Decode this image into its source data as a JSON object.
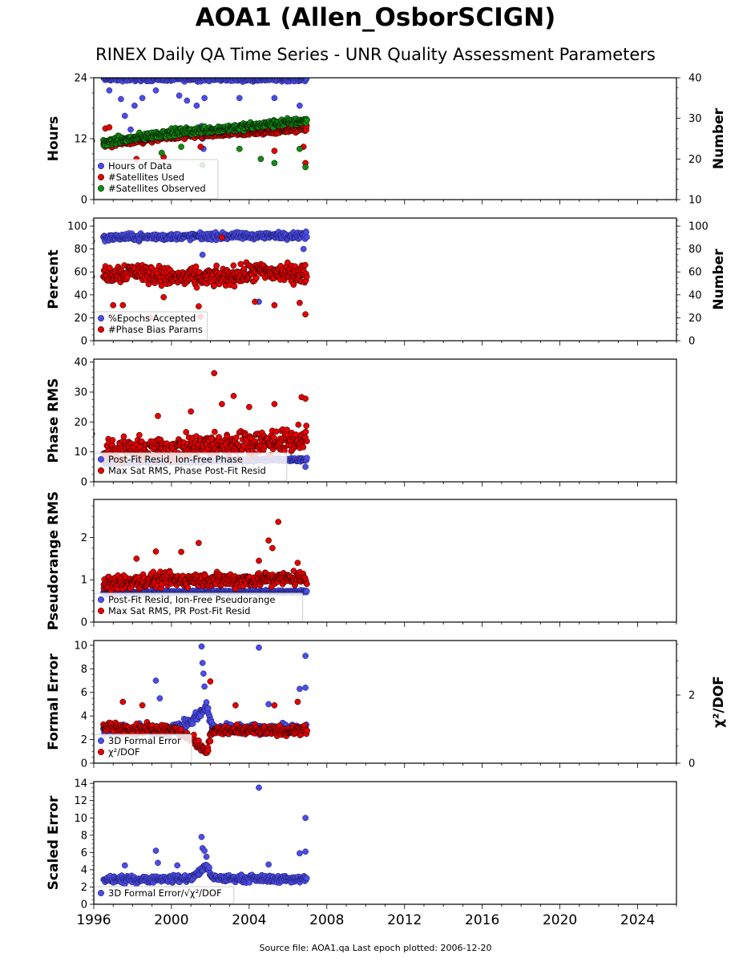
{
  "title": "AOA1 (Allen_OsborSCIGN)",
  "subtitle": "RINEX Daily QA Time Series - UNR Quality Assessment Parameters",
  "footer": "Source file: AOA1.qa Last epoch plotted: 2006-12-20",
  "x_axis": {
    "range": [
      1996,
      2026
    ],
    "ticks": [
      1996,
      2000,
      2004,
      2008,
      2012,
      2016,
      2020,
      2024
    ],
    "data_range": [
      1995.9,
      2006.97
    ]
  },
  "colors": {
    "blue": "#4c4ce6",
    "red": "#e60000",
    "green": "#118c11",
    "dark_blue": "#1a1a66",
    "dark_red": "#660000"
  },
  "chart_data": [
    {
      "type": "scatter",
      "ylabel": "Hours",
      "ylim": [
        0,
        24
      ],
      "yticks": [
        0,
        12,
        24
      ],
      "y2label": "Number",
      "y2lim": [
        10,
        40
      ],
      "y2ticks": [
        10,
        20,
        30,
        40
      ],
      "legend": "lower-left",
      "series": [
        {
          "name": "Hours of Data",
          "color": "blue",
          "axis": "left",
          "trend": [
            [
              1996.5,
              23.8
            ],
            [
              2006.9,
              23.8
            ]
          ],
          "noise": 0.4,
          "outliers": [
            [
              1996.8,
              21.5
            ],
            [
              1997.4,
              19.8
            ],
            [
              1997.6,
              16.5
            ],
            [
              1997.9,
              13.8
            ],
            [
              1998.1,
              18.5
            ],
            [
              1998.5,
              20.0
            ],
            [
              1999.2,
              21.5
            ],
            [
              2000.4,
              20.5
            ],
            [
              2000.8,
              19.5
            ],
            [
              2001.3,
              18.5
            ],
            [
              2001.55,
              14.5
            ],
            [
              2001.6,
              12.0
            ],
            [
              2001.65,
              10.0
            ],
            [
              2001.7,
              20.0
            ],
            [
              2003.5,
              20.0
            ],
            [
              2005.3,
              20.0
            ],
            [
              2006.6,
              18.5
            ]
          ]
        },
        {
          "name": "#Satellites Used",
          "color": "red",
          "axis": "right",
          "trend": [
            [
              1996.5,
              23.5
            ],
            [
              2000.0,
              25.5
            ],
            [
              2004.0,
              26.5
            ],
            [
              2006.9,
              27.5
            ]
          ],
          "noise": 0.7,
          "outliers": [
            [
              1996.6,
              27.5
            ],
            [
              1996.8,
              27.8
            ],
            [
              1998.2,
              20.0
            ],
            [
              1999.6,
              20.5
            ],
            [
              2005.3,
              22.0
            ],
            [
              2006.8,
              23.0
            ],
            [
              2006.9,
              19.0
            ],
            [
              2001.5,
              23.0
            ]
          ]
        },
        {
          "name": "#Satellites Observed",
          "color": "green",
          "axis": "right",
          "trend": [
            [
              1996.5,
              24.0
            ],
            [
              2000.0,
              26.5
            ],
            [
              2004.0,
              28.0
            ],
            [
              2006.9,
              29.5
            ]
          ],
          "noise": 0.8,
          "outliers": [
            [
              1995.9,
              24.5
            ],
            [
              1999.5,
              21.5
            ],
            [
              2000.5,
              23.0
            ],
            [
              2001.6,
              18.5
            ],
            [
              2004.6,
              20.0
            ],
            [
              2005.3,
              19.0
            ],
            [
              2006.6,
              22.5
            ],
            [
              2006.9,
              18.0
            ],
            [
              2003.5,
              22.5
            ]
          ]
        }
      ]
    },
    {
      "type": "scatter",
      "ylabel": "Percent",
      "ylim": [
        0,
        107
      ],
      "yticks": [
        0,
        20,
        40,
        60,
        80,
        100
      ],
      "y2label": "Number",
      "y2lim": [
        0,
        107
      ],
      "y2ticks": [
        0,
        20,
        40,
        60,
        80,
        100
      ],
      "legend": "lower-left",
      "series": [
        {
          "name": "%Epochs Accepted",
          "color": "blue",
          "axis": "left",
          "trend": [
            [
              1996.5,
              90.0
            ],
            [
              2006.9,
              92.0
            ]
          ],
          "noise": 2.5,
          "outliers": [
            [
              1995.9,
              87.0
            ],
            [
              2001.6,
              75.0
            ],
            [
              2004.5,
              34.0
            ],
            [
              2006.8,
              80.0
            ]
          ]
        },
        {
          "name": "#Phase Bias Params",
          "color": "red",
          "axis": "right",
          "trend": [
            [
              1996.5,
              57.0
            ],
            [
              1998.0,
              61.0
            ],
            [
              2000.0,
              55.0
            ],
            [
              2002.5,
              55.0
            ],
            [
              2004.5,
              60.0
            ],
            [
              2006.9,
              58.0
            ]
          ],
          "noise": 7,
          "outliers": [
            [
              1995.9,
              56.0
            ],
            [
              1997.0,
              31.0
            ],
            [
              1997.5,
              31.0
            ],
            [
              1998.9,
              20.0
            ],
            [
              1999.6,
              38.0
            ],
            [
              2001.4,
              30.0
            ],
            [
              2001.5,
              21.0
            ],
            [
              2002.6,
              90.0
            ],
            [
              2004.3,
              34.0
            ],
            [
              2005.3,
              31.0
            ],
            [
              2006.6,
              33.0
            ],
            [
              2006.9,
              23.0
            ]
          ]
        }
      ]
    },
    {
      "type": "scatter",
      "ylabel": "Phase RMS",
      "ylim": [
        0,
        41
      ],
      "yticks": [
        0,
        10,
        20,
        30,
        40
      ],
      "legend": "lower-left",
      "series": [
        {
          "name": "Post-Fit Resid, Ion-Free Phase",
          "color": "blue",
          "axis": "left",
          "trend": [
            [
              1996.5,
              6.5
            ],
            [
              2006.9,
              7.5
            ]
          ],
          "noise": 0.5,
          "outliers": [
            [
              2006.9,
              5.0
            ]
          ]
        },
        {
          "name": "Max Sat RMS, Phase Post-Fit Resid",
          "color": "red",
          "axis": "left",
          "trend": [
            [
              1996.5,
              10.0
            ],
            [
              2000.0,
              11.0
            ],
            [
              2004.0,
              13.0
            ],
            [
              2006.9,
              14.0
            ]
          ],
          "noise": 3.5,
          "outliers": [
            [
              1995.9,
              16.0
            ],
            [
              2001.0,
              23.5
            ],
            [
              2002.2,
              36.3
            ],
            [
              2002.6,
              26.0
            ],
            [
              2003.2,
              28.7
            ],
            [
              2004.0,
              25.0
            ],
            [
              2005.3,
              26.0
            ],
            [
              2006.7,
              28.3
            ],
            [
              2006.9,
              27.8
            ],
            [
              1999.3,
              22.0
            ]
          ]
        }
      ]
    },
    {
      "type": "scatter",
      "ylabel": "Pseudorange RMS",
      "ylim": [
        0,
        2.9
      ],
      "yticks": [
        0,
        1,
        2
      ],
      "legend": "lower-left",
      "series": [
        {
          "name": "Post-Fit Resid, Ion-Free Pseudorange",
          "color": "blue",
          "axis": "left",
          "trend": [
            [
              1996.5,
              0.7
            ],
            [
              2006.9,
              0.72
            ]
          ],
          "noise": 0.03,
          "outliers": []
        },
        {
          "name": "Max Sat RMS, PR Post-Fit Resid",
          "color": "red",
          "axis": "left",
          "trend": [
            [
              1996.5,
              0.9
            ],
            [
              2000.0,
              1.0
            ],
            [
              2004.0,
              1.0
            ],
            [
              2006.9,
              1.05
            ]
          ],
          "noise": 0.15,
          "outliers": [
            [
              1995.9,
              0.55
            ],
            [
              1998.2,
              1.5
            ],
            [
              1999.2,
              1.67
            ],
            [
              2000.5,
              1.66
            ],
            [
              2001.4,
              1.87
            ],
            [
              2004.5,
              1.45
            ],
            [
              2005.0,
              1.93
            ],
            [
              2005.5,
              2.37
            ],
            [
              2005.2,
              1.75
            ],
            [
              2006.5,
              1.4
            ]
          ]
        }
      ]
    },
    {
      "type": "scatter",
      "ylabel": "Formal Error",
      "ylim": [
        0,
        10.4
      ],
      "yticks": [
        0,
        2,
        4,
        6,
        8,
        10
      ],
      "y2label": "χ²/DOF",
      "y2lim": [
        0,
        3.6
      ],
      "y2ticks": [
        0,
        2
      ],
      "legend": "lower-left",
      "series": [
        {
          "name": "3D Formal Error",
          "color": "blue",
          "axis": "left",
          "trend": [
            [
              1996.5,
              2.8
            ],
            [
              2000.0,
              2.8
            ],
            [
              2001.0,
              3.6
            ],
            [
              2001.5,
              4.2
            ],
            [
              2001.8,
              5.0
            ],
            [
              2002.1,
              3.0
            ],
            [
              2006.9,
              2.9
            ]
          ],
          "noise": 0.35,
          "outliers": [
            [
              1999.2,
              7.0
            ],
            [
              1999.4,
              5.5
            ],
            [
              2001.55,
              9.9
            ],
            [
              2001.6,
              8.5
            ],
            [
              2001.65,
              7.6
            ],
            [
              2001.7,
              6.5
            ],
            [
              2004.5,
              9.8
            ],
            [
              2006.6,
              6.3
            ],
            [
              2006.9,
              9.1
            ],
            [
              2006.9,
              6.4
            ],
            [
              2005.0,
              5.0
            ]
          ]
        },
        {
          "name": "χ²/DOF",
          "color": "red",
          "axis": "right",
          "trend": [
            [
              1996.5,
              1.05
            ],
            [
              2000.0,
              1.0
            ],
            [
              2001.0,
              0.75
            ],
            [
              2001.5,
              0.5
            ],
            [
              2001.8,
              0.35
            ],
            [
              2002.1,
              0.95
            ],
            [
              2006.9,
              0.95
            ]
          ],
          "noise": 0.12,
          "outliers": [
            [
              1997.5,
              1.8
            ],
            [
              1998.5,
              1.7
            ],
            [
              2002.0,
              2.4
            ],
            [
              2003.3,
              1.7
            ],
            [
              2005.3,
              1.7
            ],
            [
              2006.5,
              1.8
            ]
          ]
        }
      ]
    },
    {
      "type": "scatter",
      "ylabel": "Scaled Error",
      "ylim": [
        0,
        14.2
      ],
      "yticks": [
        0,
        2,
        4,
        6,
        8,
        10,
        12,
        14
      ],
      "legend": "lower-left",
      "series": [
        {
          "name": "3D Formal Error/√χ²/DOF",
          "color": "blue",
          "axis": "left",
          "trend": [
            [
              1996.5,
              2.8
            ],
            [
              2001.0,
              3.0
            ],
            [
              2001.5,
              3.8
            ],
            [
              2001.8,
              4.5
            ],
            [
              2002.1,
              3.0
            ],
            [
              2006.9,
              2.9
            ]
          ],
          "noise": 0.35,
          "outliers": [
            [
              1999.2,
              6.2
            ],
            [
              1999.3,
              4.8
            ],
            [
              2000.3,
              4.5
            ],
            [
              2001.55,
              7.8
            ],
            [
              2001.6,
              6.5
            ],
            [
              2001.7,
              6.2
            ],
            [
              2001.8,
              5.5
            ],
            [
              2004.5,
              13.5
            ],
            [
              2005.0,
              4.6
            ],
            [
              2006.6,
              5.9
            ],
            [
              2006.9,
              10.0
            ],
            [
              2006.9,
              6.1
            ],
            [
              1997.6,
              4.5
            ]
          ]
        }
      ]
    }
  ]
}
